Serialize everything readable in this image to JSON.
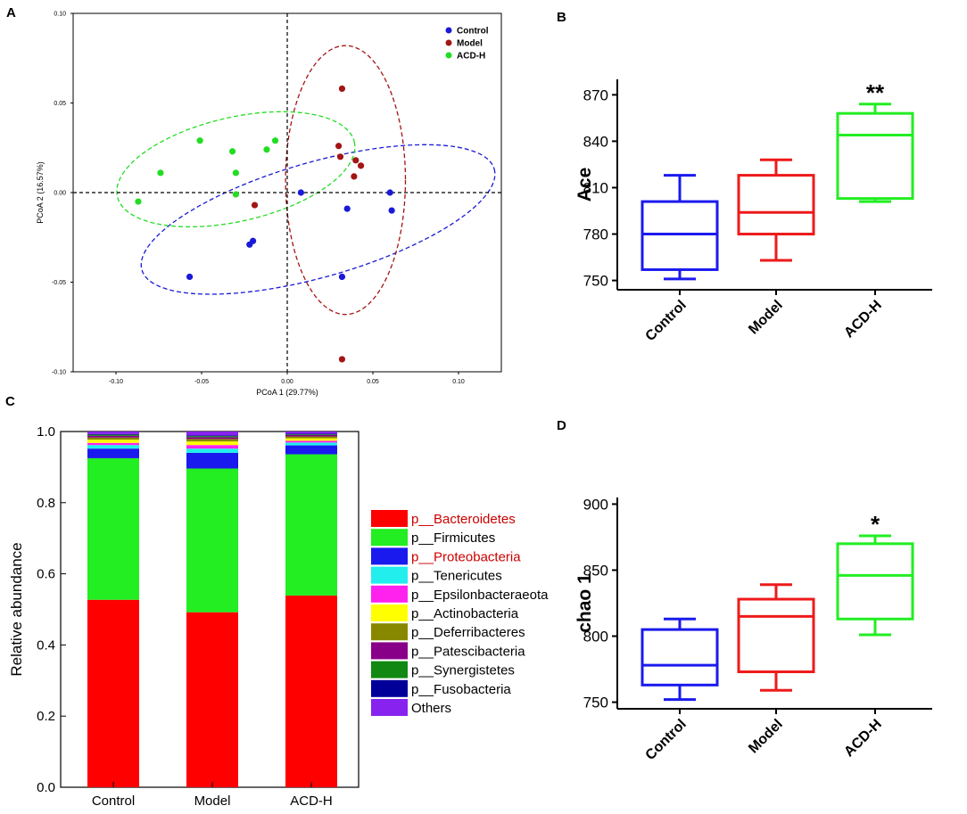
{
  "panels": {
    "a": "A",
    "b": "B",
    "c": "C",
    "d": "D"
  },
  "colors": {
    "control": "#1a1ad6",
    "model": "#a31515",
    "acdh": "#22dd22",
    "box_control": "#1a1aee",
    "box_model": "#ee1a1a",
    "box_acdh": "#22ee22"
  },
  "chart_data": [
    {
      "id": "A",
      "type": "scatter",
      "xlabel": "PCoA 1 (29.77%)",
      "ylabel": "PCoA 2 (16.57%)",
      "xlim": [
        -0.125,
        0.125
      ],
      "ylim": [
        -0.1,
        0.1
      ],
      "xticks": [
        "-0.10",
        "-0.05",
        "0.00",
        "0.05",
        "0.10"
      ],
      "yticks": [
        "0.10",
        "0.05",
        "0.00",
        "-0.05",
        "-0.10"
      ],
      "xtick_values": [
        -0.1,
        -0.05,
        0.0,
        0.05,
        0.1
      ],
      "ytick_values": [
        0.1,
        0.05,
        0.0,
        -0.05,
        -0.1
      ],
      "legend": [
        "Control",
        "Model",
        "ACD-H"
      ],
      "series": [
        {
          "name": "Control",
          "points": [
            [
              -0.057,
              -0.047
            ],
            [
              -0.022,
              -0.029
            ],
            [
              -0.02,
              -0.027
            ],
            [
              0.008,
              0.0
            ],
            [
              0.035,
              -0.009
            ],
            [
              0.06,
              0.0
            ],
            [
              0.061,
              -0.01
            ],
            [
              0.032,
              -0.047
            ]
          ]
        },
        {
          "name": "Model",
          "points": [
            [
              0.032,
              0.058
            ],
            [
              0.03,
              0.026
            ],
            [
              0.031,
              0.02
            ],
            [
              0.04,
              0.018
            ],
            [
              0.043,
              0.015
            ],
            [
              0.039,
              0.009
            ],
            [
              -0.019,
              -0.007
            ],
            [
              0.032,
              -0.093
            ]
          ]
        },
        {
          "name": "ACD-H",
          "points": [
            [
              -0.087,
              -0.005
            ],
            [
              -0.074,
              0.011
            ],
            [
              -0.051,
              0.029
            ],
            [
              -0.032,
              0.023
            ],
            [
              -0.03,
              0.011
            ],
            [
              -0.012,
              0.024
            ],
            [
              -0.007,
              0.029
            ],
            [
              -0.03,
              -0.001
            ]
          ]
        }
      ],
      "ellipses": [
        {
          "name": "Control",
          "cx": 0.018,
          "cy": -0.015,
          "rx": 0.107,
          "ry": 0.032,
          "angle_deg": 16
        },
        {
          "name": "Model",
          "cx": 0.034,
          "cy": 0.007,
          "rx": 0.035,
          "ry": 0.075,
          "angle_deg": 0
        },
        {
          "name": "ACD-H",
          "cx": -0.03,
          "cy": 0.013,
          "rx": 0.071,
          "ry": 0.029,
          "angle_deg": 13
        }
      ]
    },
    {
      "id": "B",
      "type": "box",
      "ylabel": "Ace",
      "categories": [
        "Control",
        "Model",
        "ACD-H"
      ],
      "ylim": [
        744,
        880
      ],
      "yticks": [
        750,
        780,
        810,
        840,
        870
      ],
      "boxes": [
        {
          "min": 751,
          "q1": 757,
          "median": 780,
          "q3": 801,
          "max": 818
        },
        {
          "min": 763,
          "q1": 780,
          "median": 794,
          "q3": 818,
          "max": 828
        },
        {
          "min": 801,
          "q1": 803,
          "median": 844,
          "q3": 858,
          "max": 864
        }
      ],
      "annotations": [
        "",
        "",
        "**"
      ]
    },
    {
      "id": "C",
      "type": "stacked-bar",
      "ylabel": "Relative abundance",
      "categories": [
        "Control",
        "Model",
        "ACD-H"
      ],
      "ylim": [
        0,
        1.0
      ],
      "yticks": [
        "0.0",
        "0.2",
        "0.4",
        "0.6",
        "0.8",
        "1.0"
      ],
      "ytick_values": [
        0,
        0.2,
        0.4,
        0.6,
        0.8,
        1.0
      ],
      "series": [
        {
          "name": "p__Bacteroidetes",
          "color": "#ff0000",
          "highlight": true,
          "values": [
            0.527,
            0.492,
            0.539
          ]
        },
        {
          "name": "p__Firmicutes",
          "color": "#22ee22",
          "highlight": false,
          "values": [
            0.398,
            0.404,
            0.397
          ]
        },
        {
          "name": "p__Proteobacteria",
          "color": "#1a1aee",
          "highlight": true,
          "values": [
            0.027,
            0.044,
            0.025
          ]
        },
        {
          "name": "p__Tenericutes",
          "color": "#22eeee",
          "highlight": false,
          "values": [
            0.01,
            0.012,
            0.008
          ]
        },
        {
          "name": "p__Epsilonbacteraeota",
          "color": "#ff22ee",
          "highlight": false,
          "values": [
            0.006,
            0.01,
            0.005
          ]
        },
        {
          "name": "p__Actinobacteria",
          "color": "#ffff00",
          "highlight": false,
          "values": [
            0.009,
            0.01,
            0.007
          ]
        },
        {
          "name": "p__Deferribacteres",
          "color": "#888800",
          "highlight": false,
          "values": [
            0.006,
            0.007,
            0.005
          ]
        },
        {
          "name": "p__Patescibacteria",
          "color": "#880088",
          "highlight": false,
          "values": [
            0.005,
            0.005,
            0.004
          ]
        },
        {
          "name": "p__Synergistetes",
          "color": "#118811",
          "highlight": false,
          "values": [
            0.003,
            0.003,
            0.002
          ]
        },
        {
          "name": "p__Fusobacteria",
          "color": "#000099",
          "highlight": false,
          "values": [
            0.002,
            0.002,
            0.002
          ]
        },
        {
          "name": "Others",
          "color": "#8822ee",
          "highlight": false,
          "values": [
            0.007,
            0.011,
            0.006
          ]
        }
      ]
    },
    {
      "id": "D",
      "type": "box",
      "ylabel": "chao 1",
      "categories": [
        "Control",
        "Model",
        "ACD-H"
      ],
      "ylim": [
        745,
        905
      ],
      "yticks": [
        750,
        800,
        850,
        900
      ],
      "boxes": [
        {
          "min": 752,
          "q1": 763,
          "median": 778,
          "q3": 805,
          "max": 813
        },
        {
          "min": 759,
          "q1": 773,
          "median": 815,
          "q3": 828,
          "max": 839
        },
        {
          "min": 801,
          "q1": 813,
          "median": 846,
          "q3": 870,
          "max": 876
        }
      ],
      "annotations": [
        "",
        "",
        "*"
      ]
    }
  ]
}
